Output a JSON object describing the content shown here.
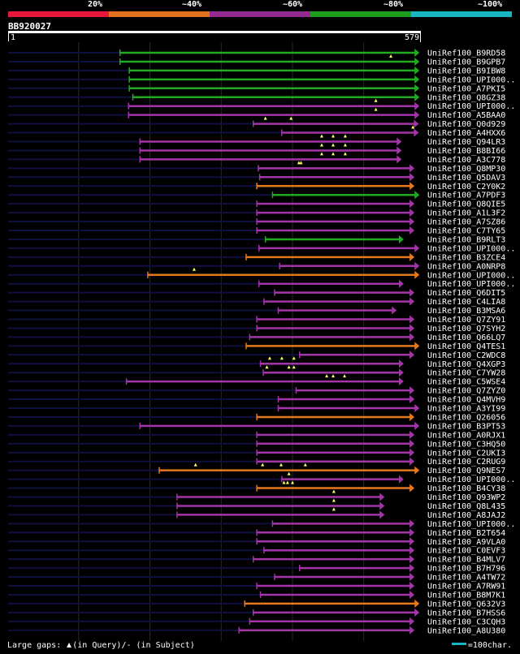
{
  "legend": [
    {
      "label": "20%",
      "color": "#e8163a"
    },
    {
      "label": "~40%",
      "color": "#e2701e"
    },
    {
      "label": "~60%",
      "color": "#922a92"
    },
    {
      "label": "~80%",
      "color": "#1e9e1e"
    },
    {
      "label": "~100%",
      "color": "#19b6c2"
    }
  ],
  "query": {
    "id": "BB920027",
    "start": "1",
    "end": "579"
  },
  "footer": {
    "gaps_text": "Large gaps: ",
    "gaps_query": "(in Query)/- (in Subject)",
    "scale_text": "=100char."
  },
  "chart_data": {
    "type": "alignment-overview",
    "query_length": 579,
    "x_range": [
      1,
      579
    ],
    "gridlines": [
      100,
      200,
      300,
      400,
      500
    ],
    "colors": {
      "green": "#22aa22",
      "purple": "#a335a8",
      "orange": "#e6781e",
      "background_line": "#101040"
    },
    "hits": [
      {
        "name": "UniRef100_B9RD58",
        "start": 158,
        "end": 577,
        "color": "green",
        "gaps": []
      },
      {
        "name": "UniRef100_B9GPB7",
        "start": 158,
        "end": 577,
        "color": "green",
        "gaps": [
          538
        ]
      },
      {
        "name": "UniRef100_B9IBW8",
        "start": 171,
        "end": 577,
        "color": "green",
        "gaps": []
      },
      {
        "name": "UniRef100_UPI000..",
        "start": 171,
        "end": 577,
        "color": "green",
        "gaps": []
      },
      {
        "name": "UniRef100_A7PKI5",
        "start": 171,
        "end": 577,
        "color": "green",
        "gaps": []
      },
      {
        "name": "UniRef100_Q8GZ38",
        "start": 176,
        "end": 577,
        "color": "green",
        "gaps": []
      },
      {
        "name": "UniRef100_UPI000..",
        "start": 170,
        "end": 577,
        "color": "purple",
        "gaps": [
          517
        ]
      },
      {
        "name": "UniRef100_A5BAA0",
        "start": 170,
        "end": 577,
        "color": "purple",
        "gaps": [
          517
        ]
      },
      {
        "name": "UniRef100_Q0d929",
        "start": 345,
        "end": 576,
        "color": "purple",
        "gaps": [
          362,
          398
        ]
      },
      {
        "name": "UniRef100_A4HXX6",
        "start": 385,
        "end": 576,
        "color": "purple",
        "gaps": [
          569
        ]
      },
      {
        "name": "UniRef100_Q94LR3",
        "start": 186,
        "end": 552,
        "color": "purple",
        "gaps": [
          441,
          457,
          474
        ]
      },
      {
        "name": "UniRef100_B8BI66",
        "start": 186,
        "end": 552,
        "color": "purple",
        "gaps": [
          441,
          457,
          474
        ]
      },
      {
        "name": "UniRef100_A3C778",
        "start": 186,
        "end": 552,
        "color": "purple",
        "gaps": [
          441,
          457,
          474
        ]
      },
      {
        "name": "UniRef100_Q8MP30",
        "start": 352,
        "end": 570,
        "color": "purple",
        "gaps": [
          409,
          412
        ]
      },
      {
        "name": "UniRef100_Q5DAV3",
        "start": 354,
        "end": 570,
        "color": "purple",
        "gaps": []
      },
      {
        "name": "UniRef100_C2Y0K2",
        "start": 350,
        "end": 570,
        "color": "orange",
        "gaps": []
      },
      {
        "name": "UniRef100_A7PDF3",
        "start": 372,
        "end": 577,
        "color": "green",
        "gaps": []
      },
      {
        "name": "UniRef100_Q8QIE5",
        "start": 350,
        "end": 570,
        "color": "purple",
        "gaps": []
      },
      {
        "name": "UniRef100_A1L3F2",
        "start": 350,
        "end": 570,
        "color": "purple",
        "gaps": []
      },
      {
        "name": "UniRef100_A7SZ86",
        "start": 350,
        "end": 570,
        "color": "purple",
        "gaps": []
      },
      {
        "name": "UniRef100_C7TY65",
        "start": 350,
        "end": 570,
        "color": "purple",
        "gaps": []
      },
      {
        "name": "UniRef100_B9RLT3",
        "start": 362,
        "end": 555,
        "color": "green",
        "gaps": []
      },
      {
        "name": "UniRef100_UPI000..",
        "start": 353,
        "end": 577,
        "color": "purple",
        "gaps": []
      },
      {
        "name": "UniRef100_B3ZCE4",
        "start": 335,
        "end": 570,
        "color": "orange",
        "gaps": []
      },
      {
        "name": "UniRef100_A0NRP8",
        "start": 382,
        "end": 577,
        "color": "purple",
        "gaps": []
      },
      {
        "name": "UniRef100_UPI000..",
        "start": 197,
        "end": 577,
        "color": "orange",
        "gaps": [
          262
        ]
      },
      {
        "name": "UniRef100_UPI000..",
        "start": 353,
        "end": 555,
        "color": "purple",
        "gaps": []
      },
      {
        "name": "UniRef100_Q6DIT5",
        "start": 375,
        "end": 570,
        "color": "purple",
        "gaps": []
      },
      {
        "name": "UniRef100_C4LIA8",
        "start": 360,
        "end": 570,
        "color": "purple",
        "gaps": []
      },
      {
        "name": "UniRef100_B3MSA6",
        "start": 380,
        "end": 545,
        "color": "purple",
        "gaps": []
      },
      {
        "name": "UniRef100_Q7ZY91",
        "start": 350,
        "end": 570,
        "color": "purple",
        "gaps": []
      },
      {
        "name": "UniRef100_Q7SYH2",
        "start": 350,
        "end": 570,
        "color": "purple",
        "gaps": []
      },
      {
        "name": "UniRef100_Q66LQ7",
        "start": 340,
        "end": 570,
        "color": "purple",
        "gaps": []
      },
      {
        "name": "UniRef100_Q4TES1",
        "start": 335,
        "end": 577,
        "color": "orange",
        "gaps": []
      },
      {
        "name": "UniRef100_C2WDC8",
        "start": 410,
        "end": 570,
        "color": "purple",
        "gaps": []
      },
      {
        "name": "UniRef100_Q4XGP3",
        "start": 355,
        "end": 555,
        "color": "purple",
        "gaps": [
          368,
          385,
          402
        ]
      },
      {
        "name": "UniRef100_C7YW28",
        "start": 359,
        "end": 555,
        "color": "purple",
        "gaps": [
          364,
          395,
          402
        ]
      },
      {
        "name": "UniRef100_C5WSE4",
        "start": 167,
        "end": 555,
        "color": "purple",
        "gaps": [
          448,
          457,
          473
        ]
      },
      {
        "name": "UniRef100_Q7ZYZ0",
        "start": 405,
        "end": 570,
        "color": "purple",
        "gaps": []
      },
      {
        "name": "UniRef100_Q4MVH9",
        "start": 380,
        "end": 570,
        "color": "purple",
        "gaps": []
      },
      {
        "name": "UniRef100_A3YI99",
        "start": 380,
        "end": 577,
        "color": "purple",
        "gaps": []
      },
      {
        "name": "UniRef100_Q26056",
        "start": 350,
        "end": 570,
        "color": "orange",
        "gaps": []
      },
      {
        "name": "UniRef100_B3PT53",
        "start": 186,
        "end": 577,
        "color": "purple",
        "gaps": []
      },
      {
        "name": "UniRef100_A0RJX1",
        "start": 350,
        "end": 570,
        "color": "purple",
        "gaps": []
      },
      {
        "name": "UniRef100_C3HQ50",
        "start": 350,
        "end": 570,
        "color": "purple",
        "gaps": []
      },
      {
        "name": "UniRef100_C2UKI3",
        "start": 350,
        "end": 570,
        "color": "purple",
        "gaps": []
      },
      {
        "name": "UniRef100_C2RUG9",
        "start": 350,
        "end": 570,
        "color": "purple",
        "gaps": []
      },
      {
        "name": "UniRef100_Q9NES7",
        "start": 213,
        "end": 577,
        "color": "orange",
        "gaps": [
          264,
          358,
          384,
          418
        ]
      },
      {
        "name": "UniRef100_UPI000..",
        "start": 385,
        "end": 555,
        "color": "purple",
        "gaps": [
          395
        ]
      },
      {
        "name": "UniRef100_B4CY38",
        "start": 350,
        "end": 570,
        "color": "orange",
        "gaps": [
          388,
          393,
          400
        ]
      },
      {
        "name": "UniRef100_Q93WP2",
        "start": 238,
        "end": 528,
        "color": "purple",
        "gaps": [
          458
        ]
      },
      {
        "name": "UniRef100_Q8L435",
        "start": 238,
        "end": 528,
        "color": "purple",
        "gaps": [
          458
        ]
      },
      {
        "name": "UniRef100_A8JAJ2",
        "start": 238,
        "end": 528,
        "color": "purple",
        "gaps": [
          458
        ]
      },
      {
        "name": "UniRef100_UPI000..",
        "start": 372,
        "end": 570,
        "color": "purple",
        "gaps": []
      },
      {
        "name": "UniRef100_B2T654",
        "start": 350,
        "end": 570,
        "color": "purple",
        "gaps": []
      },
      {
        "name": "UniRef100_A9VLA0",
        "start": 350,
        "end": 570,
        "color": "purple",
        "gaps": []
      },
      {
        "name": "UniRef100_C0EVF3",
        "start": 360,
        "end": 570,
        "color": "purple",
        "gaps": []
      },
      {
        "name": "UniRef100_B4MLV7",
        "start": 345,
        "end": 570,
        "color": "purple",
        "gaps": []
      },
      {
        "name": "UniRef100_B7H796",
        "start": 410,
        "end": 570,
        "color": "purple",
        "gaps": []
      },
      {
        "name": "UniRef100_A4TW72",
        "start": 375,
        "end": 570,
        "color": "purple",
        "gaps": []
      },
      {
        "name": "UniRef100_A7RW91",
        "start": 350,
        "end": 570,
        "color": "purple",
        "gaps": []
      },
      {
        "name": "UniRef100_B8M7K1",
        "start": 355,
        "end": 570,
        "color": "purple",
        "gaps": []
      },
      {
        "name": "UniRef100_Q632V3",
        "start": 333,
        "end": 577,
        "color": "orange",
        "gaps": []
      },
      {
        "name": "UniRef100_B7HSS6",
        "start": 345,
        "end": 577,
        "color": "purple",
        "gaps": []
      },
      {
        "name": "UniRef100_C3CQH3",
        "start": 340,
        "end": 570,
        "color": "purple",
        "gaps": []
      },
      {
        "name": "UniRef100_A8U380",
        "start": 325,
        "end": 570,
        "color": "purple",
        "gaps": []
      }
    ]
  }
}
